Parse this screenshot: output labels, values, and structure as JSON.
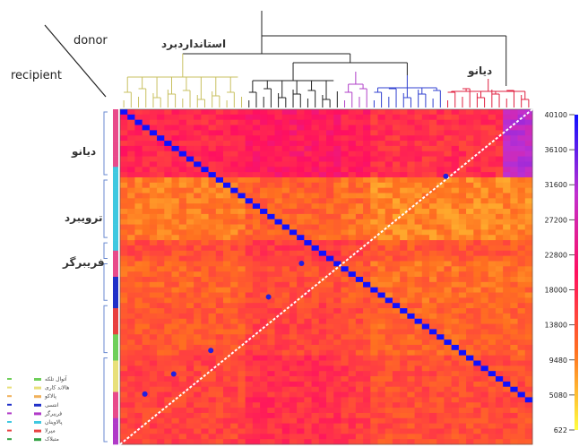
{
  "labels": {
    "donor": "donor",
    "recipient": "recipient",
    "top_group_1": "استانداردبرد",
    "top_group_2": "دیانو",
    "left_group_1": "دیانو",
    "left_group_2": "ترویبرد",
    "left_group_3": "فریبرگر"
  },
  "legend_items": [
    {
      "label": "آتوال تلکه",
      "color": "#6fcf5a"
    },
    {
      "label": "هالاند کاری",
      "color": "#e8e07a"
    },
    {
      "label": "پالاکو",
      "color": "#f0b05a"
    },
    {
      "label": "انتسی",
      "color": "#2030c8"
    },
    {
      "label": "فریبرگر",
      "color": "#b03ac8"
    },
    {
      "label": "پالاوینان",
      "color": "#40c8e0"
    },
    {
      "label": "میرلا",
      "color": "#e84040"
    },
    {
      "label": "متبلاک",
      "color": "#30a040"
    }
  ],
  "chart_data": {
    "type": "heatmap",
    "colorbar": {
      "ticks": [
        40100,
        36100,
        31600,
        27200,
        22800,
        18000,
        13800,
        9480,
        5080,
        622
      ],
      "stops": [
        "#1010ff",
        "#c030d0",
        "#ff1060",
        "#ff7020",
        "#ffff40"
      ],
      "range": [
        622,
        40100
      ]
    },
    "row_blocks": [
      {
        "name": "dianou",
        "size": 13,
        "value": 22000
      },
      {
        "name": "trouvbird",
        "size": 12,
        "value": 6000
      },
      {
        "name": "fribourg",
        "size": 4,
        "value": 14000
      },
      {
        "name": "mid1",
        "size": 8,
        "value": 10000
      },
      {
        "name": "mid2",
        "size": 10,
        "value": 12000
      },
      {
        "name": "bottom",
        "size": 17,
        "value": 16000
      }
    ],
    "col_blocks": [
      {
        "name": "std",
        "size": 17,
        "value": 14000
      },
      {
        "name": "black",
        "size": 13,
        "value": 18000
      },
      {
        "name": "purple",
        "size": 4,
        "value": 16000
      },
      {
        "name": "blue",
        "size": 10,
        "value": 12000
      },
      {
        "name": "dianou",
        "size": 12,
        "value": 12000
      }
    ],
    "highlight_block": {
      "rows": [
        0,
        13
      ],
      "cols": [
        52,
        64
      ],
      "value": 30000
    }
  }
}
